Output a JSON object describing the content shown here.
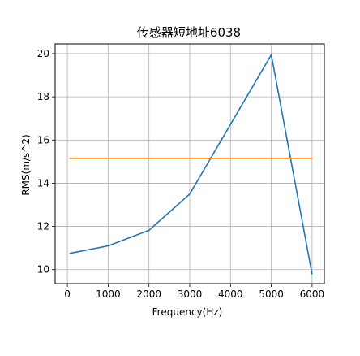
{
  "chart_data": {
    "type": "line",
    "title": "传感器短地址6038",
    "xlabel": "Frequency(Hz)",
    "ylabel": "RMS(m/s^2)",
    "xlim": [
      -300,
      6300
    ],
    "ylim": [
      9.35,
      20.45
    ],
    "xticks": [
      0,
      1000,
      2000,
      3000,
      4000,
      5000,
      6000
    ],
    "yticks": [
      10,
      12,
      14,
      16,
      18,
      20
    ],
    "grid": true,
    "series": [
      {
        "color": "#1f77b4",
        "x": [
          50,
          1000,
          2000,
          3000,
          5000,
          6000
        ],
        "y": [
          10.75,
          11.1,
          11.82,
          13.5,
          19.95,
          9.78
        ]
      },
      {
        "color": "#ff7f0e",
        "x": [
          50,
          6000
        ],
        "y": [
          15.15,
          15.15
        ]
      }
    ]
  }
}
